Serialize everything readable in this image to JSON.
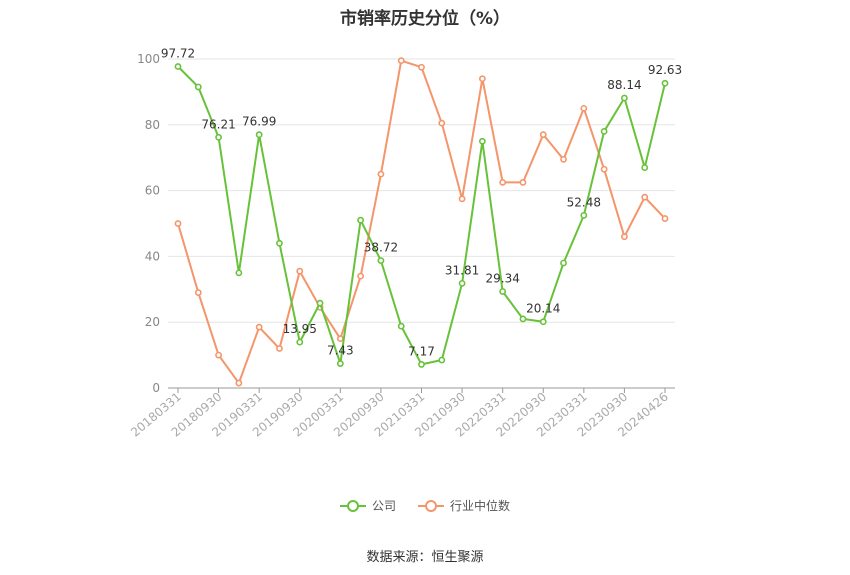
{
  "chart_data": {
    "type": "line",
    "title": "市销率历史分位（%）",
    "source": "数据来源：恒生聚源",
    "ylim": [
      0,
      100
    ],
    "y_ticks": [
      0,
      20,
      40,
      60,
      80,
      100
    ],
    "grid": true,
    "legend_position": "bottom",
    "x_tick_labels": [
      "20180331",
      "20180930",
      "20190331",
      "20190930",
      "20200331",
      "20200930",
      "20210331",
      "20210930",
      "20220331",
      "20220930",
      "20230331",
      "20230930",
      "20240426"
    ],
    "series": [
      {
        "name": "公司",
        "color": "#67c23a",
        "values": [
          97.72,
          91.5,
          76.21,
          35.0,
          76.99,
          44.0,
          13.95,
          25.8,
          7.43,
          51.0,
          38.72,
          18.8,
          7.17,
          8.5,
          31.81,
          75.0,
          29.34,
          21.0,
          20.14,
          38.0,
          52.48,
          78.0,
          88.14,
          67.0,
          92.63
        ],
        "labels": {
          "0": "97.72",
          "2": "76.21",
          "4": "76.99",
          "6": "13.95",
          "8": "7.43",
          "10": "38.72",
          "12": "7.17",
          "14": "31.81",
          "16": "29.34",
          "18": "20.14",
          "20": "52.48",
          "22": "88.14",
          "24": "92.63"
        }
      },
      {
        "name": "行业中位数",
        "color": "#f4956a",
        "values": [
          50.0,
          29.0,
          10.0,
          1.5,
          18.5,
          12.0,
          35.5,
          24.5,
          15.0,
          34.0,
          65.0,
          99.5,
          97.5,
          80.5,
          57.5,
          94.0,
          62.5,
          62.5,
          77.0,
          69.5,
          85.0,
          66.5,
          46.0,
          58.0,
          51.5
        ]
      }
    ]
  }
}
